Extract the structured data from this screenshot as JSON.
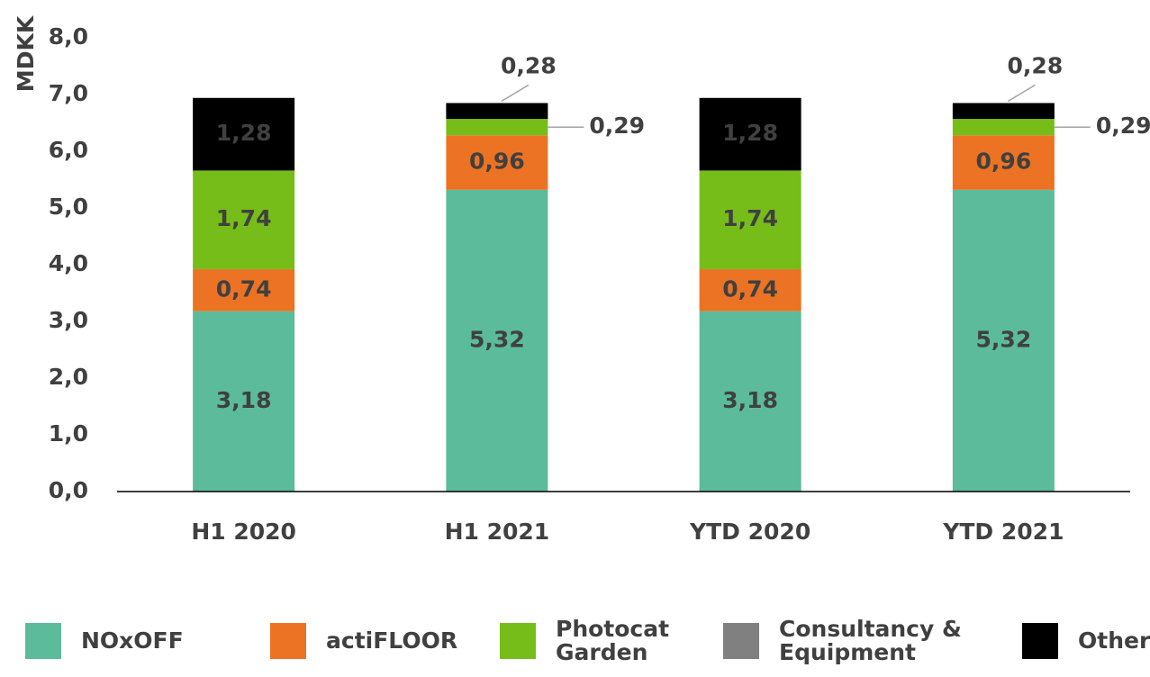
{
  "chart_data": {
    "type": "stacked_bar",
    "y_label": "MDKK",
    "categories": [
      "H1 2020",
      "H1 2021",
      "YTD 2020",
      "YTD 2021"
    ],
    "series": [
      {
        "name": "NOxOFF",
        "color": "#5bbb9b",
        "values": [
          3.18,
          5.32,
          3.18,
          5.32
        ],
        "value_labels": [
          "3,18",
          "5,32",
          "3,18",
          "5,32"
        ]
      },
      {
        "name": "actiFLOOR",
        "color": "#ec7323",
        "values": [
          0.74,
          0.96,
          0.74,
          0.96
        ],
        "value_labels": [
          "0,74",
          "0,96",
          "0,74",
          "0,96"
        ]
      },
      {
        "name": "Photocat Garden",
        "color": "#77bd1a",
        "values": [
          1.74,
          0.29,
          1.74,
          0.29
        ],
        "value_labels": [
          "1,74",
          "0,29",
          "1,74",
          "0,29"
        ]
      },
      {
        "name": "Consultancy & Equipment",
        "color": "#808080",
        "values": [
          0,
          0,
          0,
          0
        ]
      },
      {
        "name": "Other",
        "color": "#000000",
        "values": [
          1.28,
          0.28,
          1.28,
          0.28
        ],
        "value_labels": [
          "1,28",
          "0,28",
          "1,28",
          "0,28"
        ]
      }
    ],
    "ylim": [
      0,
      8
    ],
    "yticks": [
      {
        "value": 0,
        "label": "0,0"
      },
      {
        "value": 1,
        "label": "1,0"
      },
      {
        "value": 2,
        "label": "2,0"
      },
      {
        "value": 3,
        "label": "3,0"
      },
      {
        "value": 4,
        "label": "4,0"
      },
      {
        "value": 5,
        "label": "5,0"
      },
      {
        "value": 6,
        "label": "6,0"
      },
      {
        "value": 7,
        "label": "7,0"
      },
      {
        "value": 8,
        "label": "8,0"
      }
    ],
    "legend": "bottom"
  }
}
